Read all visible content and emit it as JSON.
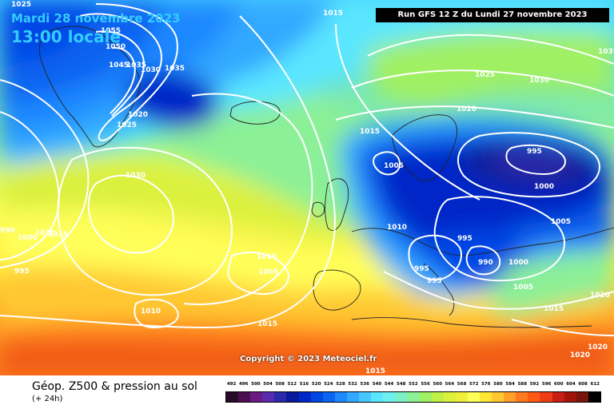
{
  "header": {
    "date": "Mardi 28 novembre 2023",
    "time": "13:00 locale",
    "run": "Run GFS 12 Z du Lundi 27 novembre 2023"
  },
  "copyright": "Copyright © 2023 Meteociel.fr",
  "footer": {
    "title": "Géop. Z500 & pression au sol",
    "subtitle": "(+ 24h)"
  },
  "scale": {
    "values": [
      "492",
      "496",
      "500",
      "504",
      "508",
      "512",
      "516",
      "520",
      "524",
      "528",
      "532",
      "536",
      "540",
      "544",
      "548",
      "552",
      "556",
      "560",
      "564",
      "568",
      "572",
      "576",
      "580",
      "584",
      "588",
      "592",
      "596",
      "600",
      "604",
      "608",
      "612"
    ],
    "colors": [
      "#2a0a2a",
      "#4a1050",
      "#6a1a80",
      "#5a2ab0",
      "#2a2aa8",
      "#0a1a9a",
      "#0028c8",
      "#0046e6",
      "#0a64f0",
      "#1e88ff",
      "#32a8ff",
      "#46c8ff",
      "#5ae6ff",
      "#6ef0f0",
      "#7cf0c8",
      "#8cf096",
      "#a0f064",
      "#c0f046",
      "#dcf03c",
      "#f0f03c",
      "#ffff5a",
      "#ffe632",
      "#ffc832",
      "#ffa028",
      "#ff7a1e",
      "#ff5a14",
      "#f03c14",
      "#c81e14",
      "#a0140a",
      "#78140a",
      "#000000"
    ]
  },
  "isobars": [
    {
      "value": "1025",
      "name": "isobar-label-1025-nw"
    },
    {
      "value": "1015",
      "name": "isobar-label-1015-n"
    },
    {
      "value": "1055",
      "name": "isobar-label-1055"
    },
    {
      "value": "1050",
      "name": "isobar-label-1050"
    },
    {
      "value": "1045",
      "name": "isobar-label-1045"
    },
    {
      "value": "1035",
      "name": "isobar-label-1035-a"
    },
    {
      "value": "1030",
      "name": "isobar-label-1030-a"
    },
    {
      "value": "1035",
      "name": "isobar-label-1035-b"
    },
    {
      "value": "1020",
      "name": "isobar-label-1020-a"
    },
    {
      "value": "1025",
      "name": "isobar-label-1025-b"
    },
    {
      "value": "1030",
      "name": "isobar-label-1030-b"
    },
    {
      "value": "990",
      "name": "isobar-label-990-w"
    },
    {
      "value": "1000",
      "name": "isobar-label-1000-w"
    },
    {
      "value": "1010",
      "name": "isobar-label-1010-w"
    },
    {
      "value": "1015",
      "name": "isobar-label-1015-w"
    },
    {
      "value": "995",
      "name": "isobar-label-995-w"
    },
    {
      "value": "1010",
      "name": "isobar-label-1010-c"
    },
    {
      "value": "1005",
      "name": "isobar-label-1005-c"
    },
    {
      "value": "1010",
      "name": "isobar-label-1010-s"
    },
    {
      "value": "1015",
      "name": "isobar-label-1015-s"
    },
    {
      "value": "1015",
      "name": "isobar-label-1015-sb"
    },
    {
      "value": "1015",
      "name": "isobar-label-1015-uk"
    },
    {
      "value": "1005",
      "name": "isobar-label-1005-n"
    },
    {
      "value": "1010",
      "name": "isobar-label-1010-e"
    },
    {
      "value": "1025",
      "name": "isobar-label-1025-ne"
    },
    {
      "value": "1030",
      "name": "isobar-label-1030-ne"
    },
    {
      "value": "1035",
      "name": "isobar-label-1035-ne"
    },
    {
      "value": "1020",
      "name": "isobar-label-1020-ne"
    },
    {
      "value": "995",
      "name": "isobar-label-995-low"
    },
    {
      "value": "1000",
      "name": "isobar-label-1000-low"
    },
    {
      "value": "1005",
      "name": "isobar-label-1005-ne2"
    },
    {
      "value": "995",
      "name": "isobar-label-995-med"
    },
    {
      "value": "990",
      "name": "isobar-label-990-med"
    },
    {
      "value": "1000",
      "name": "isobar-label-1000-med"
    },
    {
      "value": "995",
      "name": "isobar-label-995-med2"
    },
    {
      "value": "995",
      "name": "isobar-label-995-med3"
    },
    {
      "value": "1005",
      "name": "isobar-label-1005-se"
    },
    {
      "value": "1015",
      "name": "isobar-label-1015-se"
    },
    {
      "value": "1020",
      "name": "isobar-label-1020-se"
    },
    {
      "value": "1020",
      "name": "isobar-label-1020-se2"
    },
    {
      "value": "1020",
      "name": "isobar-label-1020-se3"
    }
  ]
}
